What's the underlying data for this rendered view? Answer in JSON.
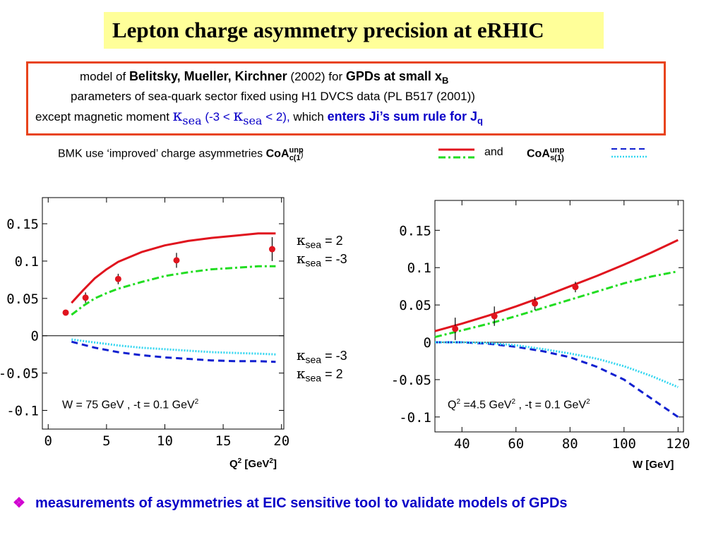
{
  "title": "Lepton charge asymmetry precision at eRHIC",
  "model": {
    "l1_a": "model of ",
    "l1_b": "Belitsky, Mueller, Kirchner",
    "l1_c": " (2002) for ",
    "l1_d": "GPDs at small x",
    "l1_sub": "B",
    "l2": "parameters of sea-quark sector fixed using H1 DVCS data (PL B517 (2001))",
    "l3_a": "except  magnetic moment ",
    "kappa": "κ",
    "sea": "sea",
    "l3_b": " (-3 < ",
    "l3_c": " < 2),",
    "l3_d": "  which ",
    "l3_e": "enters Ji’s sum rule for J",
    "l3_sub": "q"
  },
  "bmk": {
    "prefix": "BMK use ‘improved’ charge asymmetries ",
    "coa": "CoA",
    "unp": "unp",
    "c1": "c(1",
    "paren": ")",
    "and": "  and  ",
    "s1": "s(1)"
  },
  "legend": {
    "k1_val": " =  2",
    "k2_val": " = -3",
    "k3_val": " = -3",
    "k4_val": " =  2"
  },
  "colors": {
    "red": "#e0141e",
    "green": "#22dd22",
    "blue": "#1020d0",
    "cyan": "#33d6f0",
    "frame": "#e8431c"
  },
  "bottom": {
    "bullet": "❖",
    "text": "measurements of asymmetries at EIC sensitive tool to validate models of GPDs"
  },
  "chart_data": [
    {
      "type": "line",
      "xlabel": "Q² [GeV²]",
      "xlabel_main": "Q",
      "xlabel_rest": " [GeV",
      "xlabel_end": "]",
      "annotation_a": "W",
      "annotation_b": " = 75 GeV ,  -t = 0.1 GeV",
      "xlim": [
        -0.5,
        20.2
      ],
      "ylim": [
        -0.125,
        0.185
      ],
      "xticks": [
        0,
        5,
        10,
        15,
        20
      ],
      "xtick_labels": [
        "0",
        "5",
        "10",
        "15",
        "20"
      ],
      "yticks": [
        -0.1,
        -0.05,
        0,
        0.05,
        0.1,
        0.15
      ],
      "ytick_labels": [
        "-0.1",
        "-0.05",
        "0",
        "0.05",
        "0.1",
        "0.15"
      ],
      "series": [
        {
          "style": "red-solid",
          "x": [
            2,
            3,
            4,
            5,
            6,
            8,
            10,
            12,
            14,
            16,
            18,
            19.5
          ],
          "y": [
            0.044,
            0.061,
            0.077,
            0.089,
            0.099,
            0.112,
            0.121,
            0.127,
            0.131,
            0.134,
            0.137,
            0.137
          ]
        },
        {
          "style": "green-dashdot",
          "x": [
            2,
            3,
            4,
            5,
            6,
            8,
            10,
            12,
            14,
            16,
            18,
            19.5
          ],
          "y": [
            0.028,
            0.04,
            0.05,
            0.057,
            0.063,
            0.072,
            0.08,
            0.085,
            0.089,
            0.091,
            0.093,
            0.093
          ]
        },
        {
          "style": "blue-dashed",
          "x": [
            2,
            4,
            6,
            8,
            10,
            12,
            14,
            16,
            18,
            19.5
          ],
          "y": [
            -0.008,
            -0.016,
            -0.022,
            -0.026,
            -0.029,
            -0.031,
            -0.033,
            -0.034,
            -0.034,
            -0.035
          ]
        },
        {
          "style": "cyan-dotted",
          "x": [
            2,
            4,
            6,
            8,
            10,
            12,
            14,
            16,
            18,
            19.5
          ],
          "y": [
            -0.005,
            -0.009,
            -0.013,
            -0.016,
            -0.018,
            -0.02,
            -0.022,
            -0.023,
            -0.024,
            -0.025
          ]
        }
      ],
      "points": [
        {
          "x": 1.5,
          "y": 0.031,
          "err": 0.0
        },
        {
          "x": 3.2,
          "y": 0.051,
          "err": 0.007
        },
        {
          "x": 6.0,
          "y": 0.076,
          "err": 0.007
        },
        {
          "x": 11.0,
          "y": 0.101,
          "err": 0.01
        },
        {
          "x": 19.2,
          "y": 0.116,
          "err": 0.016
        }
      ]
    },
    {
      "type": "line",
      "xlabel": "W [GeV]",
      "xlabel_main": "W [GeV]",
      "annotation_a": "Q",
      "annotation_b": " =4.5 GeV",
      "annotation_c": " ,  -t = 0.1 GeV",
      "xlim": [
        30,
        122
      ],
      "ylim": [
        -0.12,
        0.19
      ],
      "xticks": [
        40,
        60,
        80,
        100,
        120
      ],
      "xtick_labels": [
        "40",
        "60",
        "80",
        "100",
        "120"
      ],
      "yticks": [
        -0.1,
        -0.05,
        0,
        0.05,
        0.1,
        0.15
      ],
      "ytick_labels": [
        "-0.1",
        "-0.05",
        "0",
        "0.05",
        "0.1",
        "0.15"
      ],
      "series": [
        {
          "style": "red-solid",
          "x": [
            30,
            40,
            50,
            60,
            70,
            80,
            90,
            100,
            110,
            120
          ],
          "y": [
            0.015,
            0.025,
            0.036,
            0.048,
            0.061,
            0.075,
            0.089,
            0.104,
            0.12,
            0.137
          ]
        },
        {
          "style": "green-dashdot",
          "x": [
            30,
            40,
            50,
            60,
            70,
            80,
            90,
            100,
            110,
            120
          ],
          "y": [
            0.007,
            0.016,
            0.025,
            0.035,
            0.046,
            0.057,
            0.068,
            0.079,
            0.088,
            0.095
          ]
        },
        {
          "style": "blue-dashed",
          "x": [
            30,
            40,
            50,
            60,
            70,
            80,
            90,
            100,
            110,
            120
          ],
          "y": [
            0.0,
            0.0,
            -0.002,
            -0.006,
            -0.012,
            -0.02,
            -0.033,
            -0.05,
            -0.075,
            -0.1
          ]
        },
        {
          "style": "cyan-dotted",
          "x": [
            30,
            40,
            50,
            60,
            70,
            80,
            90,
            100,
            110,
            120
          ],
          "y": [
            0.0,
            0.0,
            -0.001,
            -0.004,
            -0.009,
            -0.015,
            -0.022,
            -0.032,
            -0.045,
            -0.06
          ]
        }
      ],
      "points": [
        {
          "x": 37.5,
          "y": 0.018,
          "err": 0.015
        },
        {
          "x": 52,
          "y": 0.035,
          "err": 0.013
        },
        {
          "x": 67,
          "y": 0.052,
          "err": 0.009
        },
        {
          "x": 82,
          "y": 0.074,
          "err": 0.007
        }
      ]
    }
  ]
}
